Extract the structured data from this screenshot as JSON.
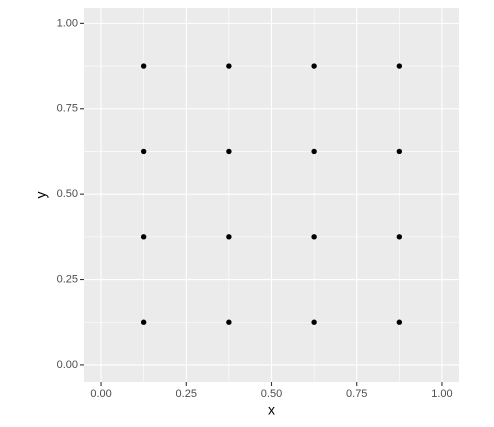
{
  "chart_data": {
    "type": "scatter",
    "x_label": "x",
    "y_label": "y",
    "x": [
      0.125,
      0.375,
      0.625,
      0.875,
      0.125,
      0.375,
      0.625,
      0.875,
      0.125,
      0.375,
      0.625,
      0.875,
      0.125,
      0.375,
      0.625,
      0.875
    ],
    "values": [
      0.125,
      0.125,
      0.125,
      0.125,
      0.375,
      0.375,
      0.375,
      0.375,
      0.625,
      0.625,
      0.625,
      0.625,
      0.875,
      0.875,
      0.875,
      0.875
    ],
    "color": "#000000",
    "xlim": [
      -0.05,
      1.05
    ],
    "ylim": [
      -0.05,
      1.045
    ],
    "xticks": [
      {
        "value": 0,
        "label": "0.00"
      },
      {
        "value": 0.25,
        "label": "0.25"
      },
      {
        "value": 0.5,
        "label": "0.50"
      },
      {
        "value": 0.75,
        "label": "0.75"
      },
      {
        "value": 1,
        "label": "1.00"
      }
    ],
    "yticks": [
      {
        "value": 0,
        "label": "0.00"
      },
      {
        "value": 0.25,
        "label": "0.25"
      },
      {
        "value": 0.5,
        "label": "0.50"
      },
      {
        "value": 0.75,
        "label": "0.75"
      },
      {
        "value": 1,
        "label": "1.00"
      }
    ],
    "grid": true,
    "minor_grid": true
  }
}
